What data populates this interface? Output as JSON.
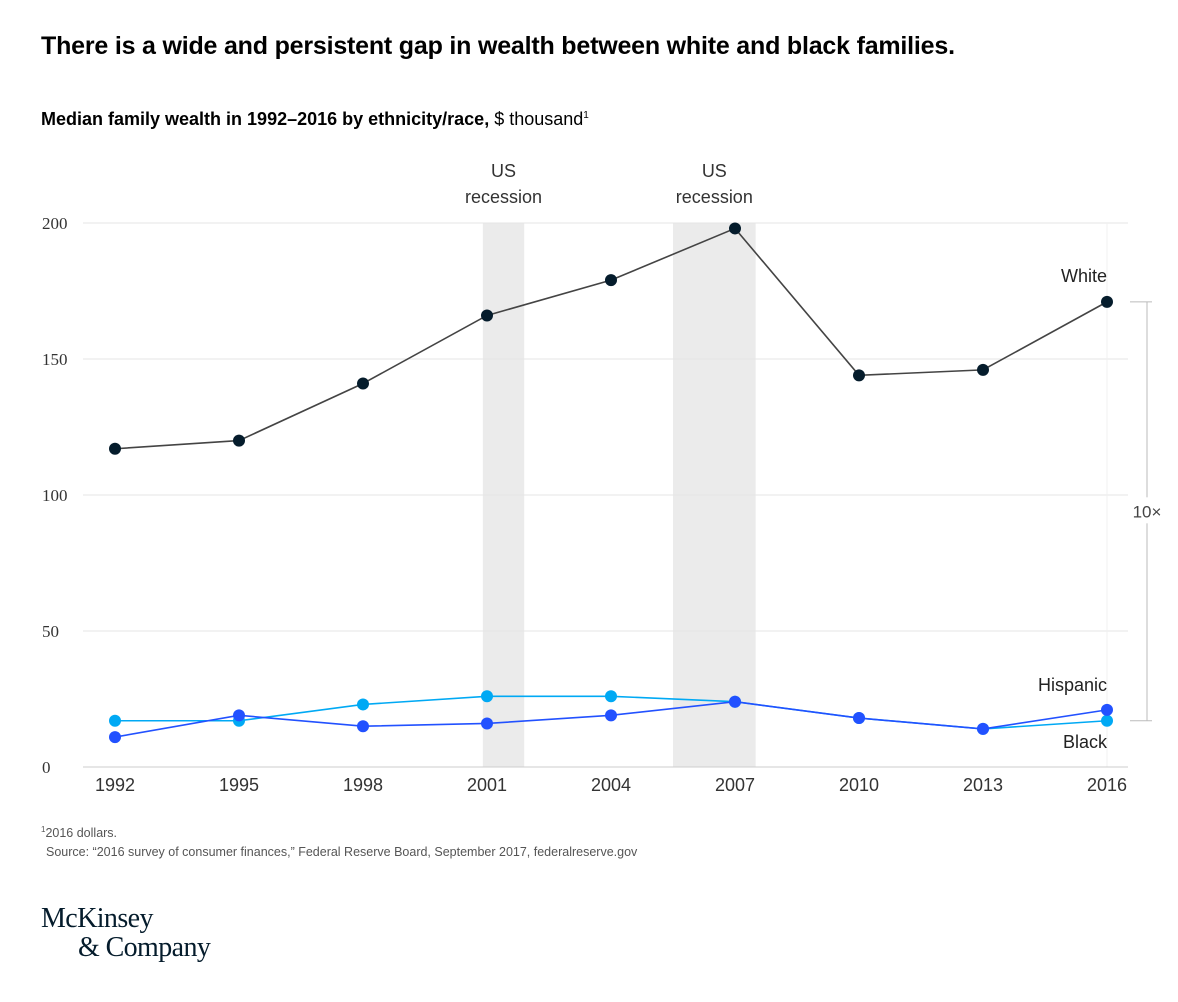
{
  "headline": "There is a wide and persistent gap in wealth between white and black families.",
  "subtitle": {
    "bold": "Median family wealth in 1992–2016 by ethnicity/race,",
    "units": " $ thousand",
    "note_marker": "1"
  },
  "chart_data": {
    "type": "line",
    "x": [
      1992,
      1995,
      1998,
      2001,
      2004,
      2007,
      2010,
      2013,
      2016
    ],
    "series": [
      {
        "name": "White",
        "color": "#051c2c",
        "values": [
          117,
          120,
          141,
          166,
          179,
          198,
          144,
          146,
          171
        ]
      },
      {
        "name": "Hispanic",
        "color": "#2251ff",
        "values": [
          11,
          19,
          15,
          16,
          19,
          24,
          18,
          14,
          21
        ]
      },
      {
        "name": "Black",
        "color": "#00a9f4",
        "values": [
          17,
          17,
          23,
          26,
          26,
          24,
          18,
          14,
          17
        ]
      }
    ],
    "recessions": [
      {
        "label": [
          "US",
          "recession"
        ],
        "start": 2000.9,
        "end": 2001.9
      },
      {
        "label": [
          "US",
          "recession"
        ],
        "start": 2005.5,
        "end": 2007.5
      }
    ],
    "y_ticks": [
      0,
      50,
      100,
      150,
      200
    ],
    "ylim": [
      0,
      200
    ],
    "xlim": [
      1992,
      2016
    ],
    "gap_annotation": "10×",
    "grid": true
  },
  "footnote": {
    "marker": "1",
    "text": "2016 dollars."
  },
  "source": "Source: “2016 survey of consumer finances,” Federal Reserve Board, September 2017, federalreserve.gov",
  "logo": {
    "line1": "McKinsey",
    "line2": "& Company"
  }
}
